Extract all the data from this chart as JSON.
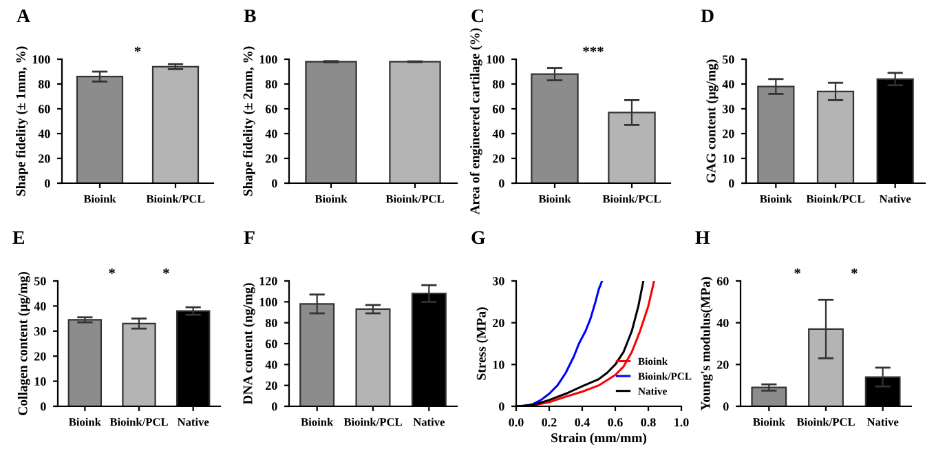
{
  "chart_data": [
    {
      "type": "bar",
      "title": "A",
      "ylabel": "Shape fidelity (± 1mm, %)",
      "categories": [
        "Bioink",
        "Bioink/PCL"
      ],
      "values": [
        86,
        94
      ],
      "colors": [
        "#8c8c8c",
        "#b4b4b4"
      ],
      "errors": [
        4,
        2
      ],
      "ylim": [
        0,
        100
      ],
      "yticks": [
        0,
        20,
        40,
        60,
        80,
        100
      ],
      "annotations": [
        "*"
      ]
    },
    {
      "type": "bar",
      "title": "B",
      "ylabel": "Shape fidelity (± 2mm, %)",
      "categories": [
        "Bioink",
        "Bioink/PCL"
      ],
      "values": [
        98,
        98
      ],
      "colors": [
        "#8c8c8c",
        "#b4b4b4"
      ],
      "errors": [
        0.5,
        0.3
      ],
      "ylim": [
        0,
        100
      ],
      "yticks": [
        0,
        20,
        40,
        60,
        80,
        100
      ]
    },
    {
      "type": "bar",
      "title": "C",
      "ylabel": "Area of engineered cartilage (%)",
      "categories": [
        "Bioink",
        "Bioink/PCL"
      ],
      "values": [
        88,
        57
      ],
      "colors": [
        "#8c8c8c",
        "#b4b4b4"
      ],
      "errors": [
        5,
        10
      ],
      "ylim": [
        0,
        100
      ],
      "yticks": [
        0,
        20,
        40,
        60,
        80,
        100
      ],
      "annotations": [
        "***"
      ]
    },
    {
      "type": "bar",
      "title": "D",
      "ylabel": "GAG content (μg/mg)",
      "categories": [
        "Bioink",
        "Bioink/PCL",
        "Native"
      ],
      "values": [
        39,
        37,
        42
      ],
      "colors": [
        "#8c8c8c",
        "#b4b4b4",
        "#000000"
      ],
      "errors": [
        3,
        3.5,
        2.5
      ],
      "ylim": [
        0,
        50
      ],
      "yticks": [
        0,
        10,
        20,
        30,
        40,
        50
      ]
    },
    {
      "type": "bar",
      "title": "E",
      "ylabel": "Collagen content (μg/mg)",
      "categories": [
        "Bioink",
        "Bioink/PCL",
        "Native"
      ],
      "values": [
        34.5,
        33,
        38
      ],
      "colors": [
        "#8c8c8c",
        "#b4b4b4",
        "#000000"
      ],
      "errors": [
        1,
        2,
        1.5
      ],
      "ylim": [
        0,
        50
      ],
      "yticks": [
        0,
        10,
        20,
        30,
        40,
        50
      ],
      "annotations": [
        "*",
        "*"
      ]
    },
    {
      "type": "bar",
      "title": "F",
      "ylabel": "DNA content (ng/mg)",
      "categories": [
        "Bioink",
        "Bioink/PCL",
        "Native"
      ],
      "values": [
        98,
        93,
        108
      ],
      "colors": [
        "#8c8c8c",
        "#b4b4b4",
        "#000000"
      ],
      "errors": [
        9,
        4,
        8
      ],
      "ylim": [
        0,
        120
      ],
      "yticks": [
        0,
        20,
        40,
        60,
        80,
        100,
        120
      ]
    },
    {
      "type": "line",
      "title": "G",
      "xlabel": "Strain (mm/mm)",
      "ylabel": "Stress (MPa)",
      "xlim": [
        0,
        1
      ],
      "xticks": [
        {
          "value": 0,
          "label": "0.0"
        },
        {
          "value": 0.2,
          "label": "0.2"
        },
        {
          "value": 0.4,
          "label": "0.4"
        },
        {
          "value": 0.6,
          "label": "0.6"
        },
        {
          "value": 0.8,
          "label": "0.8"
        },
        {
          "value": 1,
          "label": "1.0"
        }
      ],
      "ylim": [
        0,
        30
      ],
      "yticks": [
        0,
        10,
        20,
        30
      ],
      "legend": "bottom right",
      "series": [
        {
          "name": "Bioink",
          "color": "#ff0000",
          "x": [
            0,
            0.1,
            0.2,
            0.3,
            0.4,
            0.5,
            0.6,
            0.65,
            0.7,
            0.75,
            0.8,
            0.835
          ],
          "values": [
            0,
            0.2,
            1,
            2.3,
            3.5,
            5,
            7.5,
            9.5,
            13,
            18,
            24,
            30
          ]
        },
        {
          "name": "Bioink/PCL",
          "color": "#0000ff",
          "x": [
            0,
            0.05,
            0.1,
            0.15,
            0.2,
            0.25,
            0.3,
            0.35,
            0.38,
            0.42,
            0.45,
            0.48,
            0.5,
            0.52
          ],
          "values": [
            0,
            0.1,
            0.5,
            1.5,
            3,
            5,
            8,
            12,
            15,
            18,
            21,
            25,
            28,
            30
          ]
        },
        {
          "name": "Native",
          "color": "#000000",
          "x": [
            0,
            0.1,
            0.2,
            0.3,
            0.4,
            0.5,
            0.55,
            0.6,
            0.65,
            0.7,
            0.74,
            0.77
          ],
          "values": [
            0,
            0.3,
            1.5,
            3,
            4.8,
            6.5,
            8,
            10,
            13,
            18,
            24,
            30
          ]
        }
      ]
    },
    {
      "type": "bar",
      "title": "H",
      "ylabel": "Young's modulus(MPa)",
      "categories": [
        "Bioink",
        "Bioink/PCL",
        "Native"
      ],
      "values": [
        9,
        37,
        14
      ],
      "colors": [
        "#8c8c8c",
        "#b4b4b4",
        "#000000"
      ],
      "errors": [
        1.5,
        14,
        4.5
      ],
      "ylim": [
        0,
        60
      ],
      "yticks": [
        0,
        20,
        40,
        60
      ],
      "annotations": [
        "*",
        "*"
      ]
    }
  ]
}
